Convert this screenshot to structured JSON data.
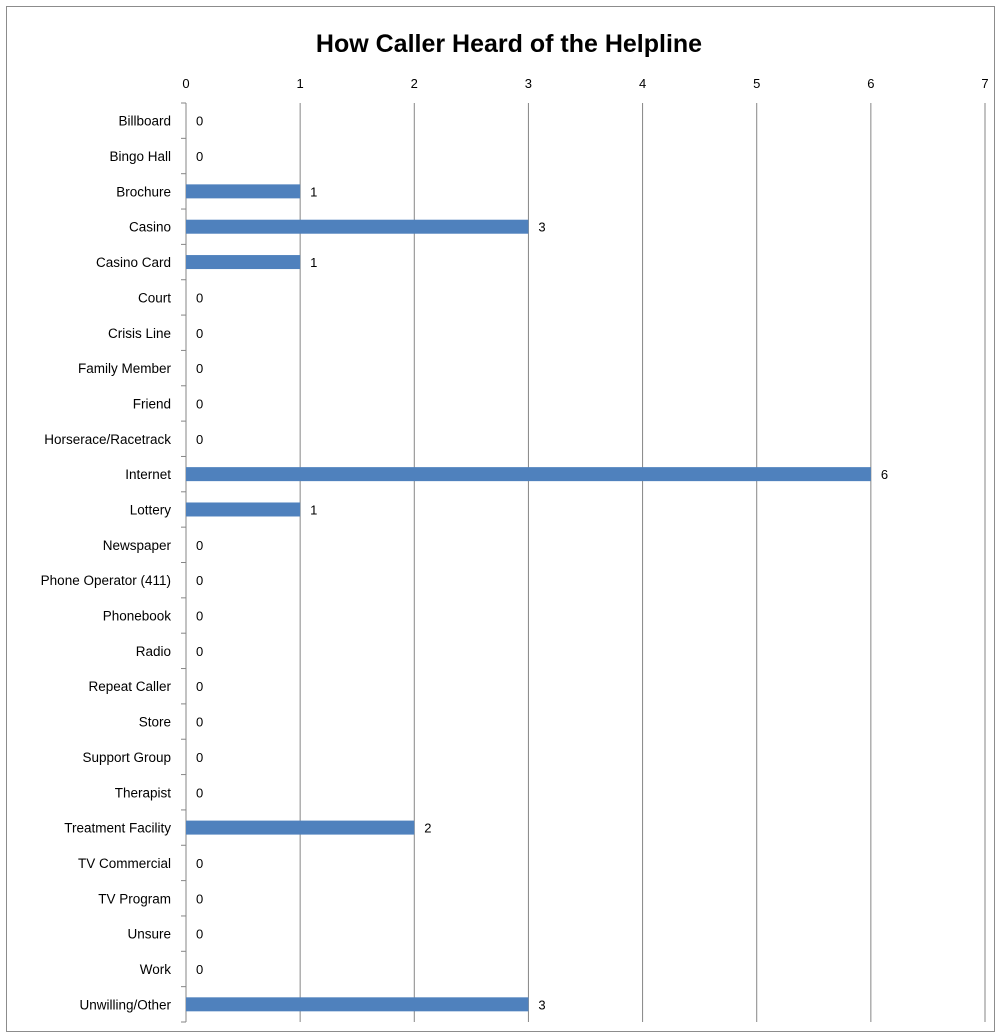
{
  "chart_data": {
    "type": "bar",
    "orientation": "horizontal",
    "title": "How Caller Heard of the Helpline",
    "xlabel": "",
    "ylabel": "",
    "xlim": [
      0,
      7
    ],
    "x_ticks": [
      "0",
      "1",
      "2",
      "3",
      "4",
      "5",
      "6",
      "7"
    ],
    "x_axis_position": "top",
    "grid": true,
    "legend": "none",
    "bar_color": "#4f81bd",
    "categories": [
      "Billboard",
      "Bingo Hall",
      "Brochure",
      "Casino",
      "Casino Card",
      "Court",
      "Crisis Line",
      "Family Member",
      "Friend",
      "Horserace/Racetrack",
      "Internet",
      "Lottery",
      "Newspaper",
      "Phone Operator (411)",
      "Phonebook",
      "Radio",
      "Repeat Caller",
      "Store",
      "Support Group",
      "Therapist",
      "Treatment Facility",
      "TV Commercial",
      "TV Program",
      "Unsure",
      "Work",
      "Unwilling/Other"
    ],
    "values": [
      0,
      0,
      1,
      3,
      1,
      0,
      0,
      0,
      0,
      0,
      6,
      1,
      0,
      0,
      0,
      0,
      0,
      0,
      0,
      0,
      2,
      0,
      0,
      0,
      0,
      3
    ],
    "data_labels": [
      "0",
      "0",
      "1",
      "3",
      "1",
      "0",
      "0",
      "0",
      "0",
      "0",
      "6",
      "1",
      "0",
      "0",
      "0",
      "0",
      "0",
      "0",
      "0",
      "0",
      "2",
      "0",
      "0",
      "0",
      "0",
      "3"
    ]
  }
}
